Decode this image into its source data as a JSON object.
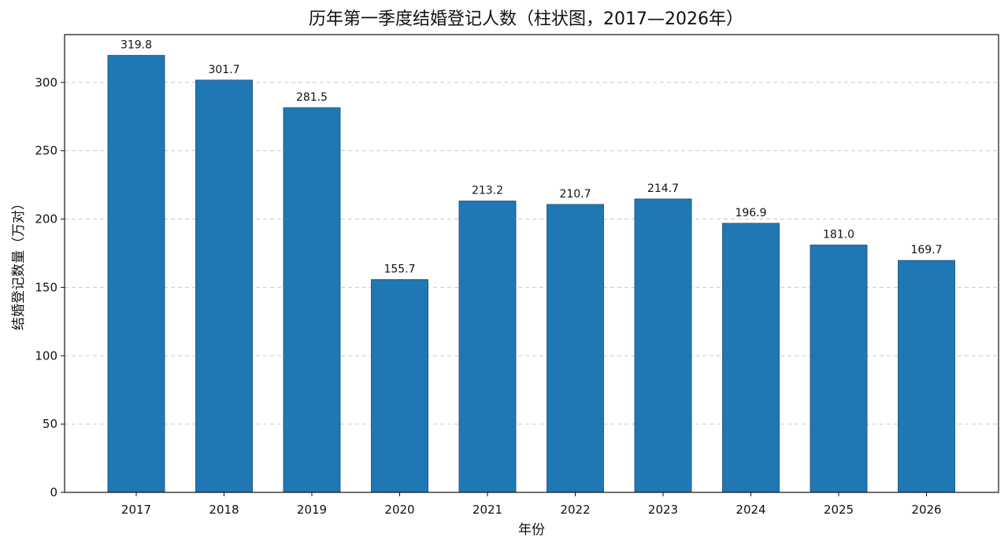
{
  "chart_data": {
    "type": "bar",
    "title": "历年第一季度结婚登记人数（柱状图，2017—2026年）",
    "xlabel": "年份",
    "ylabel": "结婚登记数量（万对）",
    "categories": [
      "2017",
      "2018",
      "2019",
      "2020",
      "2021",
      "2022",
      "2023",
      "2024",
      "2025",
      "2026"
    ],
    "values": [
      319.8,
      301.7,
      281.5,
      155.7,
      213.2,
      210.7,
      214.7,
      196.9,
      181.0,
      169.7
    ],
    "value_labels": [
      "319.8",
      "301.7",
      "281.5",
      "155.7",
      "213.2",
      "210.7",
      "214.7",
      "196.9",
      "181.0",
      "169.7"
    ],
    "ylim": [
      0,
      335
    ],
    "yticks": [
      0,
      50,
      100,
      150,
      200,
      250,
      300
    ],
    "ytick_labels": [
      "0",
      "50",
      "100",
      "150",
      "200",
      "250",
      "300"
    ],
    "grid": true,
    "bar_color": "#1f77b4"
  }
}
